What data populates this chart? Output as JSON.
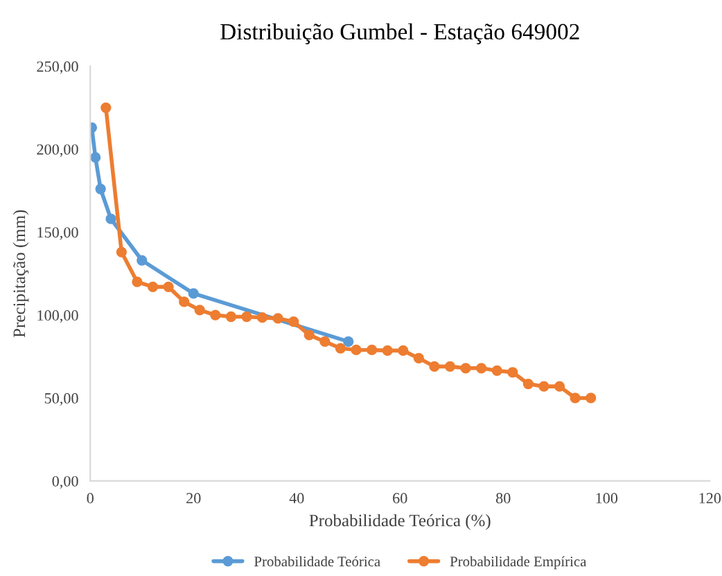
{
  "chart_data": {
    "type": "line",
    "title": "Distribuição Gumbel - Estação 649002",
    "xlabel": "Probabilidade Teórica (%)",
    "ylabel": "Precipitação (mm)",
    "xlim": [
      0,
      120
    ],
    "xticks": [
      0,
      20,
      40,
      60,
      80,
      100,
      120
    ],
    "ylim": [
      0,
      250
    ],
    "yticks": [
      {
        "value": 0,
        "label": "0,00"
      },
      {
        "value": 50,
        "label": "50,00"
      },
      {
        "value": 100,
        "label": "100,00"
      },
      {
        "value": 150,
        "label": "150,00"
      },
      {
        "value": 200,
        "label": "200,00"
      },
      {
        "value": 250,
        "label": "250,00"
      }
    ],
    "grid": false,
    "legend": "bottom",
    "marker": "circle",
    "line_style": "solid",
    "series": [
      {
        "name": "Probabilidade Teórica",
        "color": "#5b9bd5",
        "x": [
          0.3,
          1,
          2,
          4,
          10,
          20,
          50
        ],
        "values": [
          213,
          195,
          176,
          158,
          133,
          113,
          84
        ]
      },
      {
        "name": "Probabilidade Empírica",
        "color": "#ed7d31",
        "x": [
          3.03,
          6.06,
          9.09,
          12.12,
          15.15,
          18.18,
          21.21,
          24.24,
          27.27,
          30.3,
          33.33,
          36.36,
          39.39,
          42.42,
          45.45,
          48.48,
          51.52,
          54.55,
          57.58,
          60.61,
          63.64,
          66.67,
          69.7,
          72.73,
          75.76,
          78.79,
          81.82,
          84.85,
          87.88,
          90.91,
          93.94,
          96.97
        ],
        "values": [
          225,
          138,
          120,
          117,
          117,
          108,
          103,
          100,
          99,
          99,
          98.5,
          98,
          96,
          88,
          84,
          80,
          79,
          79,
          78.6,
          78.6,
          74,
          69,
          69,
          68,
          68,
          66.5,
          65.5,
          58.5,
          57,
          57,
          50,
          50
        ]
      }
    ]
  }
}
